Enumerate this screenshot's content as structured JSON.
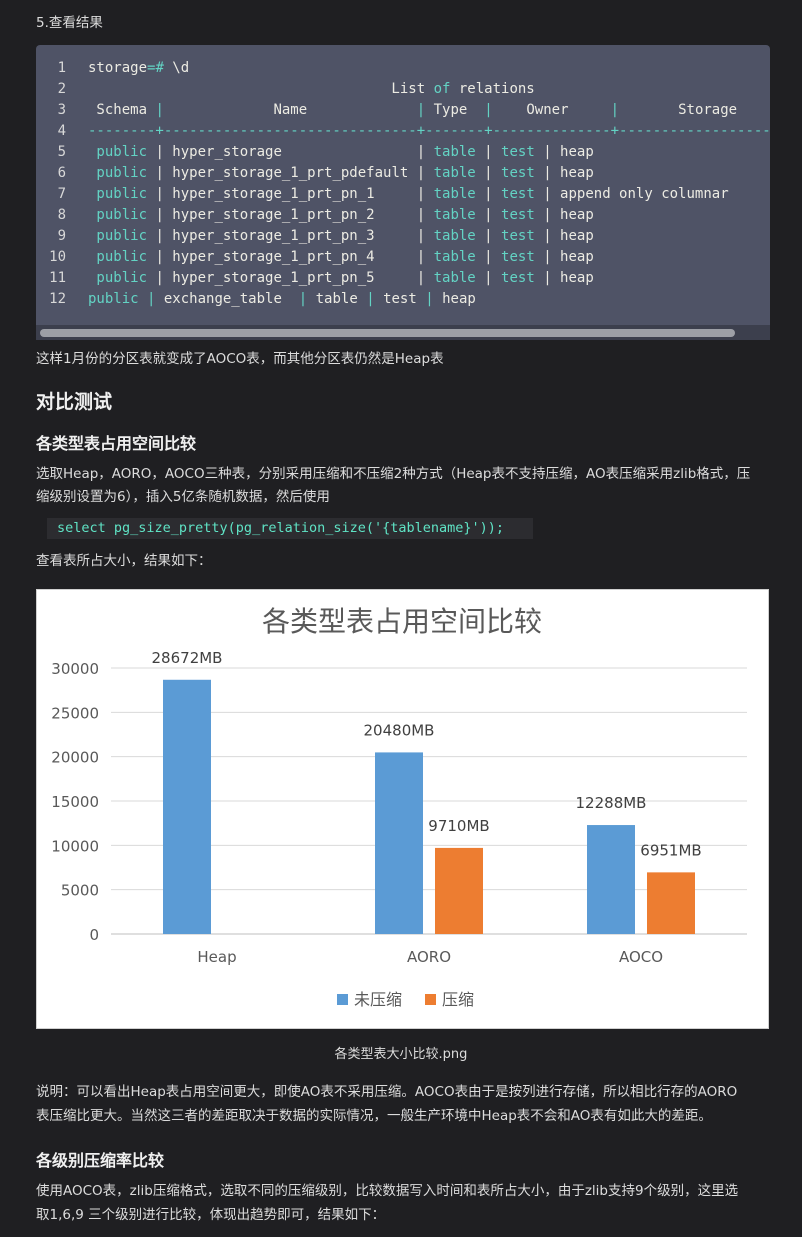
{
  "section": {
    "step_heading": "5.查看结果",
    "after_code_text": "这样1月份的分区表就变成了AOCO表，而其他分区表仍然是Heap表",
    "h2_title": "对比测试",
    "h3_space_title": "各类型表占用空间比较",
    "space_paragraph_line1": "选取Heap，AORO，AOCO三种表，分别采用压缩和不压缩2种方式（Heap表不支持压缩，AO表压缩采用zlib格式，压",
    "space_paragraph_line2": "缩级别设置为6），插入5亿条随机数据，然后使用",
    "inline_sql": "select pg_size_pretty(pg_relation_size('{tablename}'));",
    "result_intro": "查看表所占大小，结果如下：",
    "image_caption": "各类型表大小比较.png",
    "explain_line1": "说明：可以看出Heap表占用空间更大，即使AO表不采用压缩。AOCO表由于是按列进行存储，所以相比行存的AORO",
    "explain_line2": "表压缩比更大。当然这三者的差距取决于数据的实际情况，一般生产环境中Heap表不会和AO表有如此大的差距。",
    "h3_ratio_title": "各级别压缩率比较",
    "ratio_line1": "使用AOCO表，zlib压缩格式，选取不同的压缩级别，比较数据写入时间和表所占大小，由于zlib支持9个级别，这里选",
    "ratio_line2": "取1,6,9 三个级别进行比较，体现出趋势即可，结果如下："
  },
  "code": {
    "lines": [
      {
        "n": "1",
        "segments": [
          [
            "t",
            "storage"
          ],
          [
            "k",
            "=#"
          ],
          [
            "t",
            " \\d"
          ]
        ]
      },
      {
        "n": "2",
        "segments": [
          [
            "t",
            "                                    List "
          ],
          [
            "k",
            "of"
          ],
          [
            "t",
            " relations"
          ]
        ]
      },
      {
        "n": "3",
        "segments": [
          [
            "t",
            " Schema "
          ],
          [
            "s",
            "|"
          ],
          [
            "t",
            "             Name             "
          ],
          [
            "s",
            "|"
          ],
          [
            "t",
            " Type  "
          ],
          [
            "s",
            "|"
          ],
          [
            "t",
            "    Owner     "
          ],
          [
            "s",
            "|"
          ],
          [
            "t",
            "       Storage"
          ]
        ]
      },
      {
        "n": "4",
        "segments": [
          [
            "s",
            "--------+------------------------------+-------+--------------+----------------------"
          ]
        ]
      },
      {
        "n": "5",
        "segments": [
          [
            "k",
            " public"
          ],
          [
            "t",
            " | hyper_storage                | "
          ],
          [
            "k",
            "table"
          ],
          [
            "t",
            " | "
          ],
          [
            "k",
            "test"
          ],
          [
            "t",
            " | heap"
          ]
        ]
      },
      {
        "n": "6",
        "segments": [
          [
            "k",
            " public"
          ],
          [
            "t",
            " | hyper_storage_1_prt_pdefault | "
          ],
          [
            "k",
            "table"
          ],
          [
            "t",
            " | "
          ],
          [
            "k",
            "test"
          ],
          [
            "t",
            " | heap"
          ]
        ]
      },
      {
        "n": "7",
        "segments": [
          [
            "k",
            " public"
          ],
          [
            "t",
            " | hyper_storage_1_prt_pn_1     | "
          ],
          [
            "k",
            "table"
          ],
          [
            "t",
            " | "
          ],
          [
            "k",
            "test"
          ],
          [
            "t",
            " | append only columnar"
          ]
        ]
      },
      {
        "n": "8",
        "segments": [
          [
            "k",
            " public"
          ],
          [
            "t",
            " | hyper_storage_1_prt_pn_2     | "
          ],
          [
            "k",
            "table"
          ],
          [
            "t",
            " | "
          ],
          [
            "k",
            "test"
          ],
          [
            "t",
            " | heap"
          ]
        ]
      },
      {
        "n": "9",
        "segments": [
          [
            "k",
            " public"
          ],
          [
            "t",
            " | hyper_storage_1_prt_pn_3     | "
          ],
          [
            "k",
            "table"
          ],
          [
            "t",
            " | "
          ],
          [
            "k",
            "test"
          ],
          [
            "t",
            " | heap"
          ]
        ]
      },
      {
        "n": "10",
        "segments": [
          [
            "k",
            " public"
          ],
          [
            "t",
            " | hyper_storage_1_prt_pn_4     | "
          ],
          [
            "k",
            "table"
          ],
          [
            "t",
            " | "
          ],
          [
            "k",
            "test"
          ],
          [
            "t",
            " | heap"
          ]
        ]
      },
      {
        "n": "11",
        "segments": [
          [
            "k",
            " public"
          ],
          [
            "t",
            " | hyper_storage_1_prt_pn_5     | "
          ],
          [
            "k",
            "table"
          ],
          [
            "t",
            " | "
          ],
          [
            "k",
            "test"
          ],
          [
            "t",
            " | heap"
          ]
        ]
      },
      {
        "n": "12",
        "segments": [
          [
            "k",
            "public"
          ],
          [
            "t",
            " "
          ],
          [
            "s",
            "|"
          ],
          [
            "t",
            " exchange_table  "
          ],
          [
            "s",
            "|"
          ],
          [
            "t",
            " table "
          ],
          [
            "s",
            "|"
          ],
          [
            "t",
            " test "
          ],
          [
            "s",
            "|"
          ],
          [
            "t",
            " heap"
          ]
        ]
      }
    ],
    "colors": {
      "keyword": "#63d3c4",
      "text": "#ecebe3",
      "background": "#4f5366"
    }
  },
  "chart_data": {
    "type": "bar",
    "title": "各类型表占用空间比较",
    "categories": [
      "Heap",
      "AORO",
      "AOCO"
    ],
    "series": [
      {
        "name": "未压缩",
        "color": "#5b9bd5",
        "values": [
          28672,
          20480,
          12288
        ],
        "labels": [
          "28672MB",
          "20480MB",
          "12288MB"
        ]
      },
      {
        "name": "压缩",
        "color": "#ed7d31",
        "values": [
          null,
          9710,
          6951
        ],
        "labels": [
          "",
          "9710MB",
          "6951MB"
        ]
      }
    ],
    "yticks": [
      "0",
      "5000",
      "10000",
      "15000",
      "20000",
      "25000",
      "30000"
    ],
    "ylim": [
      0,
      30000
    ],
    "grid": true,
    "legend": "bottom"
  }
}
